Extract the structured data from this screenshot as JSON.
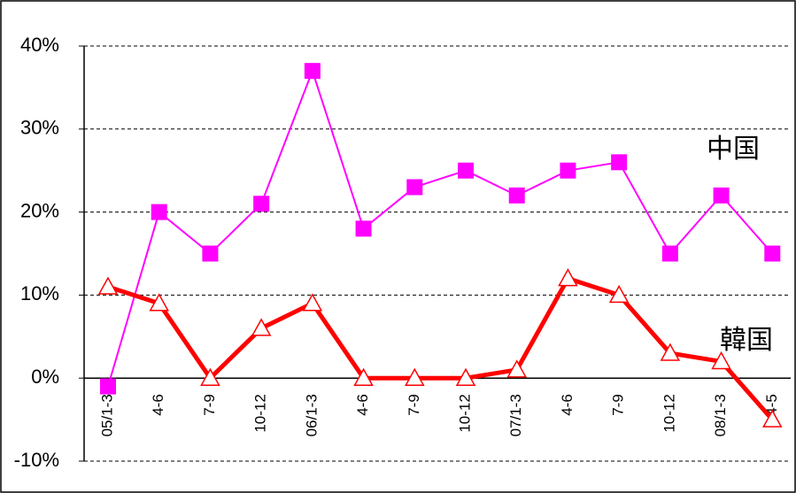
{
  "chart_data": {
    "type": "line",
    "categories": [
      "05/1-3",
      "4-6",
      "7-9",
      "10-12",
      "06/1-3",
      "4-6",
      "7-9",
      "10-12",
      "07/1-3",
      "4-6",
      "7-9",
      "10-12",
      "08/1-3",
      "4-5"
    ],
    "series": [
      {
        "name": "中国",
        "color": "#ff00ff",
        "values": [
          -1,
          20,
          15,
          21,
          37,
          18,
          23,
          25,
          22,
          25,
          26,
          15,
          22,
          15
        ]
      },
      {
        "name": "韓国",
        "color": "#ff0000",
        "values": [
          11,
          9,
          0,
          6,
          9,
          0,
          0,
          0,
          1,
          12,
          10,
          3,
          2,
          -5
        ]
      }
    ],
    "ylim": [
      -10,
      40
    ],
    "yticks": [
      {
        "value": -10,
        "label": "-10%"
      },
      {
        "value": 0,
        "label": "0%"
      },
      {
        "value": 10,
        "label": "10%"
      },
      {
        "value": 20,
        "label": "20%"
      },
      {
        "value": 30,
        "label": "30%"
      },
      {
        "value": 40,
        "label": "40%"
      }
    ],
    "grid": true
  }
}
